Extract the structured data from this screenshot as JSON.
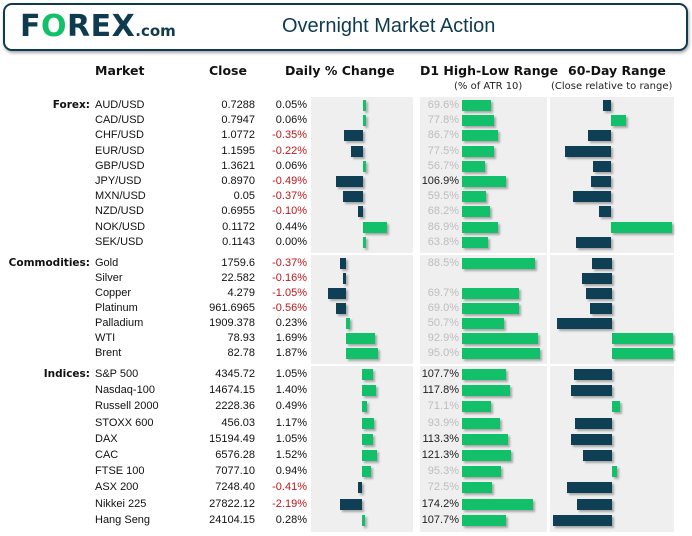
{
  "header": {
    "logo_text": "FOREX.com",
    "logo_main": "F",
    "logo_o": "O",
    "logo_rest": "REX",
    "logo_com": ".com",
    "title": "Overnight Market Action"
  },
  "columns": {
    "market": "Market",
    "close": "Close",
    "daily_change": "Daily % Change",
    "d1_range": "D1 High-Low Range",
    "d1_range_sub": "(% of ATR 10)",
    "range60": "60-Day Range",
    "range60_sub": "(Close relative to range)"
  },
  "colors": {
    "positive": "#13c06a",
    "negative": "#0f3f55",
    "negative_text": "#c0161b",
    "panel": "#efefef",
    "brand": "#0f3b4f"
  },
  "groups": [
    {
      "label": "Forex:",
      "rows": [
        {
          "market": "AUD/USD",
          "close": "0.7288",
          "change": "0.05%",
          "change_value": 0.05,
          "d1": "69.6%",
          "d1_value": 69.6,
          "range60": -0.13
        },
        {
          "market": "CAD/USD",
          "close": "0.7947",
          "change": "0.06%",
          "change_value": 0.06,
          "d1": "77.8%",
          "d1_value": 77.8,
          "range60": 0.25
        },
        {
          "market": "CHF/USD",
          "close": "1.0772",
          "change": "-0.35%",
          "change_value": -0.35,
          "d1": "86.7%",
          "d1_value": 86.7,
          "range60": -0.38
        },
        {
          "market": "EUR/USD",
          "close": "1.1595",
          "change": "-0.22%",
          "change_value": -0.22,
          "d1": "77.5%",
          "d1_value": 77.5,
          "range60": -0.76
        },
        {
          "market": "GBP/USD",
          "close": "1.3621",
          "change": "0.06%",
          "change_value": 0.06,
          "d1": "56.7%",
          "d1_value": 56.7,
          "range60": -0.3
        },
        {
          "market": "JPY/USD",
          "close": "0.8970",
          "change": "-0.49%",
          "change_value": -0.49,
          "d1": "106.9%",
          "d1_value": 106.9,
          "range60": -0.32
        },
        {
          "market": "MXN/USD",
          "close": "0.05",
          "change": "-0.37%",
          "change_value": -0.37,
          "d1": "59.5%",
          "d1_value": 59.5,
          "range60": -0.63
        },
        {
          "market": "NZD/USD",
          "close": "0.6955",
          "change": "-0.10%",
          "change_value": -0.1,
          "d1": "68.2%",
          "d1_value": 68.2,
          "range60": -0.2
        },
        {
          "market": "NOK/USD",
          "close": "0.1172",
          "change": "0.44%",
          "change_value": 0.44,
          "d1": "86.9%",
          "d1_value": 86.9,
          "range60": 1.0
        },
        {
          "market": "SEK/USD",
          "close": "0.1143",
          "change": "0.00%",
          "change_value": 0.0,
          "d1": "63.8%",
          "d1_value": 63.8,
          "range60": -0.58
        }
      ]
    },
    {
      "label": "Commodities:",
      "rows": [
        {
          "market": "Gold",
          "close": "1759.6",
          "change": "-0.37%",
          "change_value": -0.37,
          "d1": "88.5%",
          "d1_value": 88.5,
          "range60": -0.33
        },
        {
          "market": "Silver",
          "close": "22.582",
          "change": "-0.16%",
          "change_value": -0.16,
          "d1": "",
          "d1_value": 0,
          "range60": -0.49
        },
        {
          "market": "Copper",
          "close": "4.279",
          "change": "-1.05%",
          "change_value": -1.05,
          "d1": "69.7%",
          "d1_value": 69.7,
          "range60": -0.42
        },
        {
          "market": "Platinum",
          "close": "961.6965",
          "change": "-0.56%",
          "change_value": -0.56,
          "d1": "69.0%",
          "d1_value": 69.0,
          "range60": -0.36
        },
        {
          "market": "Palladium",
          "close": "1909.378",
          "change": "0.23%",
          "change_value": 0.23,
          "d1": "50.7%",
          "d1_value": 50.7,
          "range60": -0.9
        },
        {
          "market": "WTI",
          "close": "78.93",
          "change": "1.69%",
          "change_value": 1.69,
          "d1": "92.9%",
          "d1_value": 92.9,
          "range60": 1.0
        },
        {
          "market": "Brent",
          "close": "82.78",
          "change": "1.87%",
          "change_value": 1.87,
          "d1": "95.0%",
          "d1_value": 95.0,
          "range60": 1.0
        }
      ]
    },
    {
      "label": "Indices:",
      "rows": [
        {
          "market": "S&P 500",
          "close": "4345.72",
          "change": "1.05%",
          "change_value": 1.05,
          "d1": "107.7%",
          "d1_value": 107.7,
          "range60": -0.63
        },
        {
          "market": "Nasdaq-100",
          "close": "14674.15",
          "change": "1.40%",
          "change_value": 1.4,
          "d1": "117.8%",
          "d1_value": 117.8,
          "range60": -0.68
        },
        {
          "market": "Russell 2000",
          "close": "2228.36",
          "change": "0.49%",
          "change_value": 0.49,
          "d1": "71.1%",
          "d1_value": 71.1,
          "range60": 0.13
        },
        {
          "market": "STOXX 600",
          "close": "456.03",
          "change": "1.17%",
          "change_value": 1.17,
          "d1": "93.9%",
          "d1_value": 93.9,
          "range60": -0.6
        },
        {
          "market": "DAX",
          "close": "15194.49",
          "change": "1.05%",
          "change_value": 1.05,
          "d1": "113.3%",
          "d1_value": 113.3,
          "range60": -0.68
        },
        {
          "market": "CAC",
          "close": "6576.28",
          "change": "1.52%",
          "change_value": 1.52,
          "d1": "121.3%",
          "d1_value": 121.3,
          "range60": -0.47
        },
        {
          "market": "FTSE 100",
          "close": "7077.10",
          "change": "0.94%",
          "change_value": 0.94,
          "d1": "95.3%",
          "d1_value": 95.3,
          "range60": 0.09
        },
        {
          "market": "ASX 200",
          "close": "7248.40",
          "change": "-0.41%",
          "change_value": -0.41,
          "d1": "72.5%",
          "d1_value": 72.5,
          "range60": -0.73
        },
        {
          "market": "Nikkei 225",
          "close": "27822.12",
          "change": "-2.19%",
          "change_value": -2.19,
          "d1": "174.2%",
          "d1_value": 174.2,
          "range60": -0.57
        },
        {
          "market": "Hang Seng",
          "close": "24104.15",
          "change": "0.28%",
          "change_value": 0.28,
          "d1": "107.7%",
          "d1_value": 107.7,
          "range60": -0.96
        }
      ]
    }
  ]
}
